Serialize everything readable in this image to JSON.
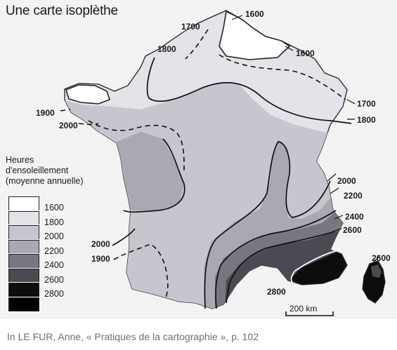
{
  "title": "Une carte isoplèthe",
  "legend": {
    "title_lines": [
      "Heures",
      "d'ensoleillement",
      "(moyenne annuelle)"
    ],
    "classes": [
      {
        "label": "1600",
        "color": "#ffffff"
      },
      {
        "label": "1800",
        "color": "#e3e3e9"
      },
      {
        "label": "2000",
        "color": "#c6c6ce"
      },
      {
        "label": "2200",
        "color": "#a9a9b1"
      },
      {
        "label": "2400",
        "color": "#777780"
      },
      {
        "label": "2600",
        "color": "#4a4a52"
      },
      {
        "label": "2800",
        "color": "#0d0d0d"
      },
      {
        "label": "",
        "color": "#000000"
      }
    ]
  },
  "isoline_labels": [
    {
      "id": "1600-top",
      "text": "1600"
    },
    {
      "id": "1700-top",
      "text": "1700"
    },
    {
      "id": "1600-right",
      "text": "1600"
    },
    {
      "id": "1800-top",
      "text": "1800"
    },
    {
      "id": "1700-right",
      "text": "1700"
    },
    {
      "id": "1900-left",
      "text": "1900"
    },
    {
      "id": "1800-right",
      "text": "1800"
    },
    {
      "id": "2000-left",
      "text": "2000"
    },
    {
      "id": "2000-right",
      "text": "2000"
    },
    {
      "id": "2200-right",
      "text": "2200"
    },
    {
      "id": "2400-right",
      "text": "2400"
    },
    {
      "id": "2600-right",
      "text": "2600"
    },
    {
      "id": "2000-bottom",
      "text": "2000"
    },
    {
      "id": "1900-bottom",
      "text": "1900"
    },
    {
      "id": "2600-corsica",
      "text": "2600"
    },
    {
      "id": "2800-bottom",
      "text": "2800"
    }
  ],
  "scale_bar": {
    "label": "200 km"
  },
  "caption": "In LE FUR, Anne, « Pratiques de la cartographie », p. 102"
}
